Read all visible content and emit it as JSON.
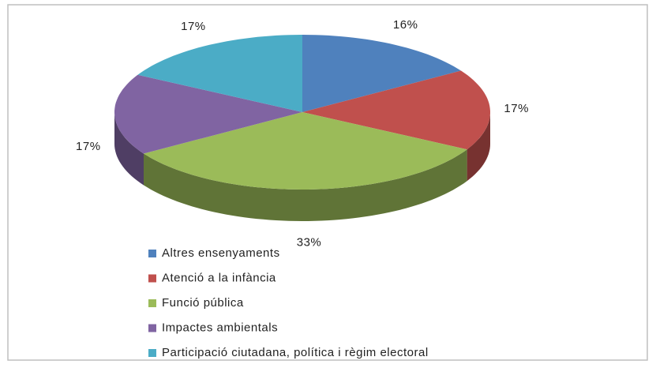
{
  "chart_data": {
    "type": "pie",
    "categories": [
      "Altres ensenyaments",
      "Atenció a la infància",
      "Funció pública",
      "Impactes ambientals",
      "Participació ciutadana, política i règim electoral"
    ],
    "values": [
      16,
      17,
      33,
      17,
      17
    ],
    "value_labels": [
      "16%",
      "17%",
      "33%",
      "17%",
      "17%"
    ],
    "colors": [
      "#4f81bd",
      "#c0504d",
      "#9bbb59",
      "#8064a2",
      "#4bacc6"
    ],
    "legend": "bottom"
  }
}
